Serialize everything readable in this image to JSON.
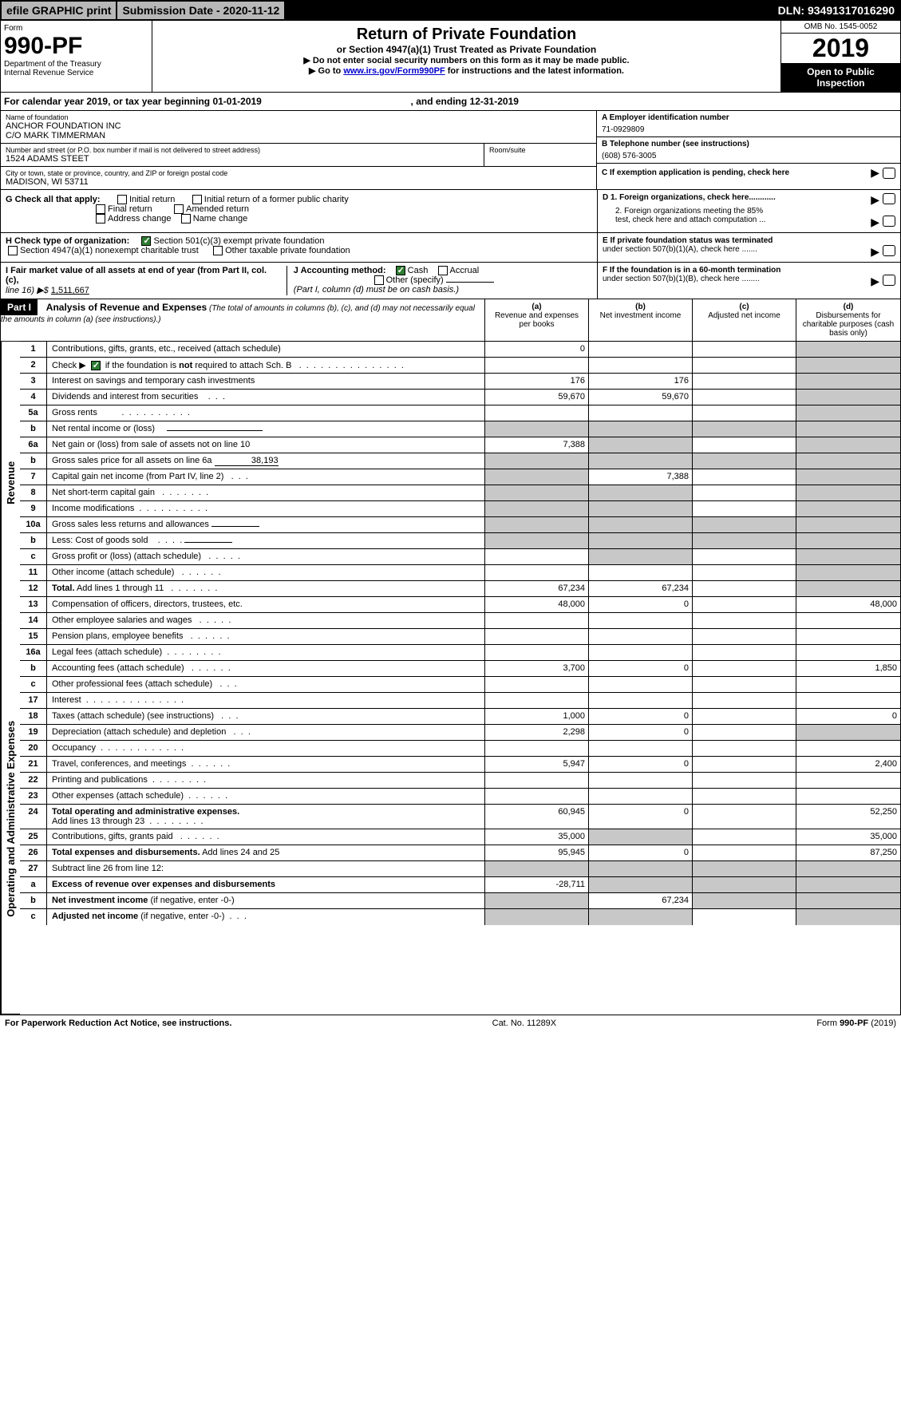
{
  "topbar": {
    "efile": "efile GRAPHIC print",
    "subdate_label": "Submission Date - ",
    "subdate": "2020-11-12",
    "dln_label": "DLN: ",
    "dln": "93491317016290"
  },
  "header": {
    "form_label": "Form",
    "form_no": "990-PF",
    "dept": "Department of the Treasury",
    "irs": "Internal Revenue Service",
    "title": "Return of Private Foundation",
    "subtitle": "or Section 4947(a)(1) Trust Treated as Private Foundation",
    "note1": "▶ Do not enter social security numbers on this form as it may be made public.",
    "note2_pre": "▶ Go to ",
    "note2_link": "www.irs.gov/Form990PF",
    "note2_post": " for instructions and the latest information.",
    "omb": "OMB No. 1545-0052",
    "year": "2019",
    "open": "Open to Public Inspection"
  },
  "calyear": {
    "pre": "For calendar year 2019, or tax year beginning ",
    "begin": "01-01-2019",
    "mid": " , and ending ",
    "end": "12-31-2019"
  },
  "info": {
    "name_label": "Name of foundation",
    "name1": "ANCHOR FOUNDATION INC",
    "name2": "C/O MARK TIMMERMAN",
    "addr_label": "Number and street (or P.O. box number if mail is not delivered to street address)",
    "addr": "1524 ADAMS STEET",
    "room_label": "Room/suite",
    "city_label": "City or town, state or province, country, and ZIP or foreign postal code",
    "city": "MADISON, WI  53711",
    "a_label": "A Employer identification number",
    "a_val": "71-0929809",
    "b_label": "B Telephone number (see instructions)",
    "b_val": "(608) 576-3005",
    "c_label": "C If exemption application is pending, check here"
  },
  "g": {
    "label": "G Check all that apply:",
    "initial": "Initial return",
    "initial_former": "Initial return of a former public charity",
    "final": "Final return",
    "amended": "Amended return",
    "addr_change": "Address change",
    "name_change": "Name change"
  },
  "d": {
    "d1": "D 1. Foreign organizations, check here............",
    "d2a": "2. Foreign organizations meeting the 85%",
    "d2b": "test, check here and attach computation ..."
  },
  "h": {
    "label": "H Check type of organization:",
    "s501": "Section 501(c)(3) exempt private foundation",
    "s4947": "Section 4947(a)(1) nonexempt charitable trust",
    "other": "Other taxable private foundation"
  },
  "e": {
    "e1": "E  If private foundation status was terminated",
    "e2": "under section 507(b)(1)(A), check here ......."
  },
  "i": {
    "label": "I Fair market value of all assets at end of year (from Part II, col. (c),",
    "line16": "line 16) ▶$ ",
    "val": "1,511,667"
  },
  "j": {
    "label": "J Accounting method:",
    "cash": "Cash",
    "accrual": "Accrual",
    "other": "Other (specify)",
    "note": "(Part I, column (d) must be on cash basis.)"
  },
  "f": {
    "f1": "F  If the foundation is in a 60-month termination",
    "f2": "under section 507(b)(1)(B), check here ........"
  },
  "part1": {
    "label": "Part I",
    "title": "Analysis of Revenue and Expenses",
    "sub": " (The total of amounts in columns (b), (c), and (d) may not necessarily equal the amounts in column (a) (see instructions).)",
    "col_a": "(a)",
    "col_a_sub": "Revenue and expenses per books",
    "col_b": "(b)",
    "col_b_sub": "Net investment income",
    "col_c": "(c)",
    "col_c_sub": "Adjusted net income",
    "col_d": "(d)",
    "col_d_sub": "Disbursements for charitable purposes (cash basis only)"
  },
  "sections": {
    "revenue": "Revenue",
    "expenses": "Operating and Administrative Expenses"
  },
  "rows": [
    {
      "n": "1",
      "d": "",
      "a": "0",
      "b": "",
      "c": ""
    },
    {
      "n": "2",
      "d": "",
      "a": "",
      "b": "",
      "c": ""
    },
    {
      "n": "3",
      "d": "",
      "a": "176",
      "b": "176",
      "c": ""
    },
    {
      "n": "4",
      "d": "",
      "a": "59,670",
      "b": "59,670",
      "c": ""
    },
    {
      "n": "5a",
      "d": "",
      "a": "",
      "b": "",
      "c": ""
    },
    {
      "n": "b",
      "d": "",
      "a": "",
      "b": "",
      "c": ""
    },
    {
      "n": "6a",
      "d": "",
      "a": "7,388",
      "b": "",
      "c": ""
    },
    {
      "n": "b",
      "d": "",
      "a": "",
      "b": "",
      "c": "",
      "greyA": true
    },
    {
      "n": "7",
      "d": "",
      "a": "",
      "b": "7,388",
      "c": "",
      "greyA": true
    },
    {
      "n": "8",
      "d": "",
      "a": "",
      "b": "",
      "c": "",
      "greyA": true,
      "greyB": true
    },
    {
      "n": "9",
      "d": "",
      "a": "",
      "b": "",
      "c": "",
      "greyA": true,
      "greyB": true
    },
    {
      "n": "10a",
      "d": "",
      "a": "",
      "b": "",
      "c": "",
      "greyA": true,
      "greyB": true,
      "greyC": true
    },
    {
      "n": "b",
      "d": "",
      "a": "",
      "b": "",
      "c": "",
      "greyA": true,
      "greyB": true,
      "greyC": true
    },
    {
      "n": "c",
      "d": "",
      "a": "",
      "b": "",
      "c": "",
      "greyB": true
    },
    {
      "n": "11",
      "d": "",
      "a": "",
      "b": "",
      "c": ""
    },
    {
      "n": "12",
      "d": "",
      "a": "67,234",
      "b": "67,234",
      "c": ""
    },
    {
      "n": "13",
      "d": "48,000",
      "a": "48,000",
      "b": "0",
      "c": ""
    },
    {
      "n": "14",
      "d": "",
      "a": "",
      "b": "",
      "c": ""
    },
    {
      "n": "15",
      "d": "",
      "a": "",
      "b": "",
      "c": ""
    },
    {
      "n": "16a",
      "d": "",
      "a": "",
      "b": "",
      "c": ""
    },
    {
      "n": "b",
      "d": "1,850",
      "a": "3,700",
      "b": "0",
      "c": ""
    },
    {
      "n": "c",
      "d": "",
      "a": "",
      "b": "",
      "c": ""
    },
    {
      "n": "17",
      "d": "",
      "a": "",
      "b": "",
      "c": ""
    },
    {
      "n": "18",
      "d": "0",
      "a": "1,000",
      "b": "0",
      "c": ""
    },
    {
      "n": "19",
      "d": "",
      "a": "2,298",
      "b": "0",
      "c": "",
      "greyD": true
    },
    {
      "n": "20",
      "d": "",
      "a": "",
      "b": "",
      "c": ""
    },
    {
      "n": "21",
      "d": "2,400",
      "a": "5,947",
      "b": "0",
      "c": ""
    },
    {
      "n": "22",
      "d": "",
      "a": "",
      "b": "",
      "c": ""
    },
    {
      "n": "23",
      "d": "",
      "a": "",
      "b": "",
      "c": ""
    },
    {
      "n": "24",
      "d": "52,250",
      "a": "60,945",
      "b": "0",
      "c": ""
    },
    {
      "n": "25",
      "d": "35,000",
      "a": "35,000",
      "b": "",
      "c": "",
      "greyB": true
    },
    {
      "n": "26",
      "d": "87,250",
      "a": "95,945",
      "b": "0",
      "c": ""
    },
    {
      "n": "27",
      "d": "",
      "a": "",
      "b": "",
      "c": "",
      "greyA": true,
      "greyB": true,
      "greyC": true,
      "greyD": true
    },
    {
      "n": "a",
      "d": "",
      "a": "-28,711",
      "b": "",
      "c": "",
      "greyB": true,
      "greyC": true,
      "greyD": true
    },
    {
      "n": "b",
      "d": "",
      "a": "",
      "b": "67,234",
      "c": "",
      "greyA": true,
      "greyC": true,
      "greyD": true
    },
    {
      "n": "c",
      "d": "",
      "a": "",
      "b": "",
      "c": "",
      "greyA": true,
      "greyB": true,
      "greyD": true
    }
  ],
  "footer": {
    "left": "For Paperwork Reduction Act Notice, see instructions.",
    "mid": "Cat. No. 11289X",
    "right": "Form 990-PF (2019)"
  }
}
